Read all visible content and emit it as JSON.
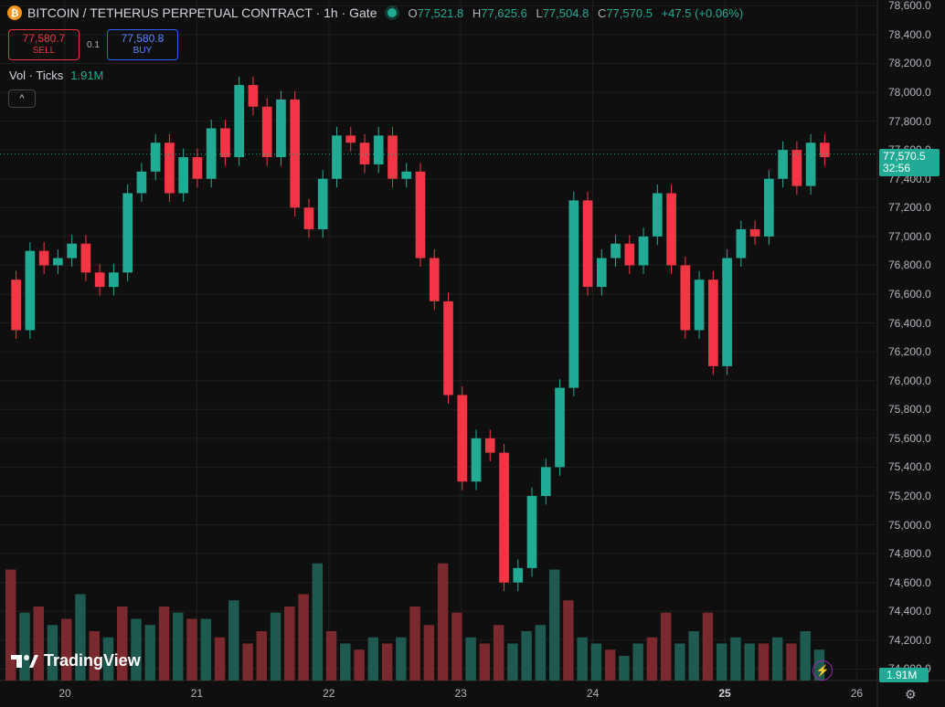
{
  "header": {
    "coin_icon": "bitcoin-icon",
    "coin_glyph": "₿",
    "title": "BITCOIN / TETHERUS PERPETUAL CONTRACT · 1h · Gate",
    "ohlc": {
      "o_label": "O",
      "o": "77,521.8",
      "h_label": "H",
      "h": "77,625.6",
      "l_label": "L",
      "l": "77,504.8",
      "c_label": "C",
      "c": "77,570.5",
      "change": "+47.5 (+0.06%)"
    }
  },
  "trade": {
    "sell_price": "77,580.7",
    "sell_label": "SELL",
    "spread": "0.1",
    "buy_price": "77,580.8",
    "buy_label": "BUY"
  },
  "volume_legend": {
    "label": "Vol · Ticks",
    "value": "1.91M"
  },
  "collapse_glyph": "^",
  "price_label": {
    "price": "77,570.5",
    "countdown": "32:56"
  },
  "volume_label": "1.91M",
  "logo_text": "TradingView",
  "colors": {
    "up": "#22ab94",
    "down": "#f23645",
    "background": "#0f0f0f",
    "grid": "#1f1f1f",
    "up_vol": "#1e5a50",
    "down_vol": "#7a2a2e"
  },
  "chart_data": {
    "type": "candlestick",
    "y_axis": {
      "range": [
        73920,
        78640
      ],
      "ticks": [
        "78,600.0",
        "78,400.0",
        "78,200.0",
        "78,000.0",
        "77,800.0",
        "77,600.0",
        "77,400.0",
        "77,200.0",
        "77,000.0",
        "76,800.0",
        "76,600.0",
        "76,400.0",
        "76,200.0",
        "76,000.0",
        "75,800.0",
        "75,600.0",
        "75,400.0",
        "75,200.0",
        "75,000.0",
        "74,800.0",
        "74,600.0",
        "74,400.0",
        "74,200.0",
        "74,000.0"
      ]
    },
    "x_axis": {
      "ticks": [
        "20",
        "21",
        "22",
        "23",
        "24",
        "25",
        "26"
      ],
      "bold_tick": "25"
    },
    "grid": true,
    "current_price": 77570.5,
    "candles_sampled": [
      [
        76700,
        76350
      ],
      [
        76350,
        76900
      ],
      [
        76900,
        76800
      ],
      [
        76800,
        76850
      ],
      [
        76850,
        76950
      ],
      [
        76950,
        76750
      ],
      [
        76750,
        76650
      ],
      [
        76650,
        76750
      ],
      [
        76750,
        77300
      ],
      [
        77300,
        77450
      ],
      [
        77450,
        77650
      ],
      [
        77650,
        77300
      ],
      [
        77300,
        77550
      ],
      [
        77550,
        77400
      ],
      [
        77400,
        77750
      ],
      [
        77750,
        77550
      ],
      [
        77550,
        78050
      ],
      [
        78050,
        77900
      ],
      [
        77900,
        77550
      ],
      [
        77550,
        77950
      ],
      [
        77950,
        77200
      ],
      [
        77200,
        77050
      ],
      [
        77050,
        77400
      ],
      [
        77400,
        77700
      ],
      [
        77700,
        77650
      ],
      [
        77650,
        77500
      ],
      [
        77500,
        77700
      ],
      [
        77700,
        77400
      ],
      [
        77400,
        77450
      ],
      [
        77450,
        76850
      ],
      [
        76850,
        76550
      ],
      [
        76550,
        75900
      ],
      [
        75900,
        75300
      ],
      [
        75300,
        75600
      ],
      [
        75600,
        75500
      ],
      [
        75500,
        74600
      ],
      [
        74600,
        74700
      ],
      [
        74700,
        75200
      ],
      [
        75200,
        75400
      ],
      [
        75400,
        75950
      ],
      [
        75950,
        77250
      ],
      [
        77250,
        76650
      ],
      [
        76650,
        76850
      ],
      [
        76850,
        76950
      ],
      [
        76950,
        76800
      ],
      [
        76800,
        77000
      ],
      [
        77000,
        77300
      ],
      [
        77300,
        76800
      ],
      [
        76800,
        76350
      ],
      [
        76350,
        76700
      ],
      [
        76700,
        76100
      ],
      [
        76100,
        76850
      ],
      [
        76850,
        77050
      ],
      [
        77050,
        77000
      ],
      [
        77000,
        77400
      ],
      [
        77400,
        77600
      ],
      [
        77600,
        77350
      ],
      [
        77350,
        77650
      ],
      [
        77650,
        77550
      ]
    ],
    "volume_sampled": [
      [
        0.9,
        0
      ],
      [
        0.55,
        1
      ],
      [
        0.6,
        0
      ],
      [
        0.45,
        1
      ],
      [
        0.5,
        0
      ],
      [
        0.7,
        1
      ],
      [
        0.4,
        0
      ],
      [
        0.35,
        1
      ],
      [
        0.6,
        0
      ],
      [
        0.5,
        1
      ],
      [
        0.45,
        1
      ],
      [
        0.6,
        0
      ],
      [
        0.55,
        1
      ],
      [
        0.5,
        0
      ],
      [
        0.5,
        1
      ],
      [
        0.35,
        0
      ],
      [
        0.65,
        1
      ],
      [
        0.3,
        0
      ],
      [
        0.4,
        0
      ],
      [
        0.55,
        1
      ],
      [
        0.6,
        0
      ],
      [
        0.7,
        0
      ],
      [
        0.95,
        1
      ],
      [
        0.4,
        0
      ],
      [
        0.3,
        1
      ],
      [
        0.25,
        0
      ],
      [
        0.35,
        1
      ],
      [
        0.3,
        0
      ],
      [
        0.35,
        1
      ],
      [
        0.6,
        0
      ],
      [
        0.45,
        0
      ],
      [
        0.95,
        0
      ],
      [
        0.55,
        0
      ],
      [
        0.35,
        1
      ],
      [
        0.3,
        0
      ],
      [
        0.45,
        0
      ],
      [
        0.3,
        1
      ],
      [
        0.4,
        1
      ],
      [
        0.45,
        1
      ],
      [
        0.9,
        1
      ],
      [
        0.65,
        0
      ],
      [
        0.35,
        1
      ],
      [
        0.3,
        1
      ],
      [
        0.25,
        0
      ],
      [
        0.2,
        1
      ],
      [
        0.3,
        1
      ],
      [
        0.35,
        0
      ],
      [
        0.55,
        0
      ],
      [
        0.3,
        1
      ],
      [
        0.4,
        1
      ],
      [
        0.55,
        0
      ],
      [
        0.3,
        1
      ],
      [
        0.35,
        1
      ],
      [
        0.3,
        1
      ],
      [
        0.3,
        0
      ],
      [
        0.35,
        1
      ],
      [
        0.3,
        0
      ],
      [
        0.4,
        1
      ],
      [
        0.25,
        1
      ]
    ]
  }
}
